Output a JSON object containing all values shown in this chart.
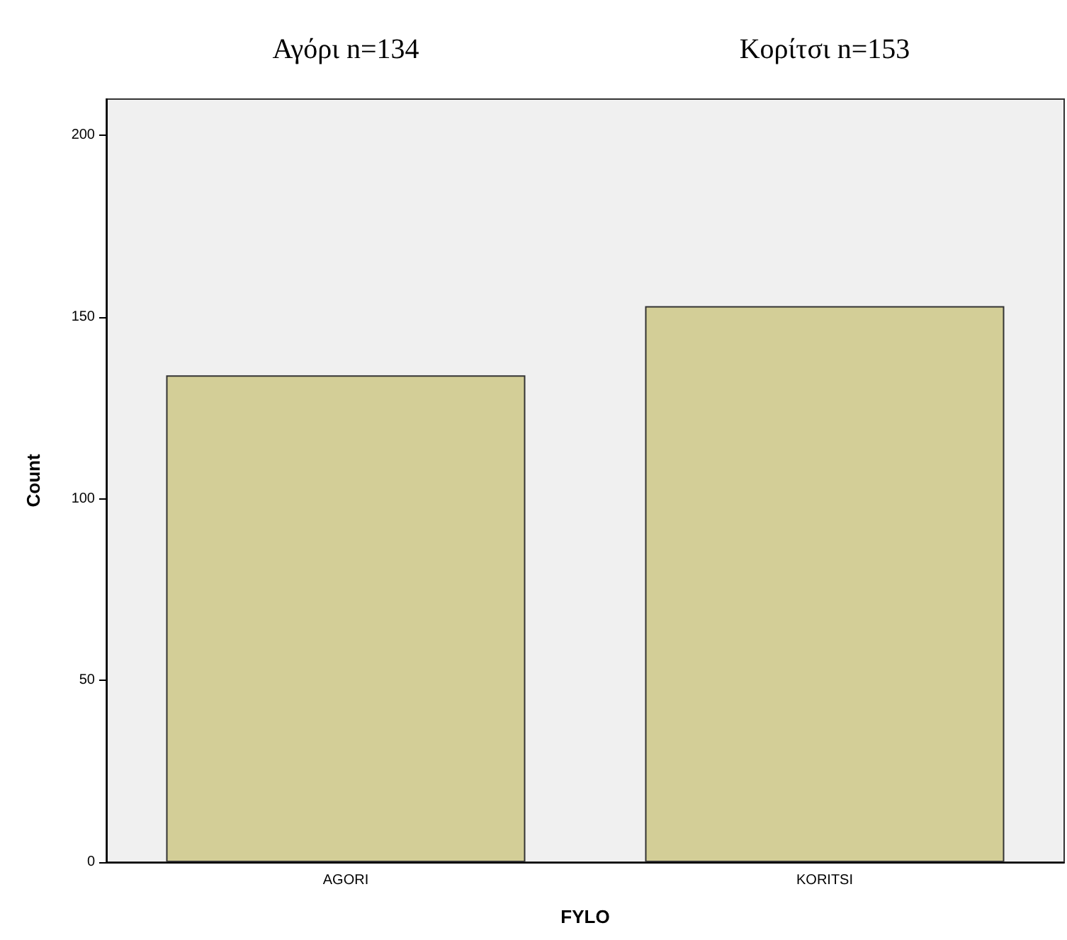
{
  "chart_data": {
    "type": "bar",
    "xlabel": "FYLO",
    "ylabel": "Count",
    "categories": [
      "AGORI",
      "KORITSI"
    ],
    "values": [
      134,
      153
    ],
    "color": "#d3ce97",
    "ylim": [
      0,
      210
    ],
    "yticks": [
      0,
      50,
      100,
      150,
      200
    ],
    "grid": false,
    "annotations": [
      "Αγόρι n=134",
      "Κορίτσι n=153"
    ]
  }
}
